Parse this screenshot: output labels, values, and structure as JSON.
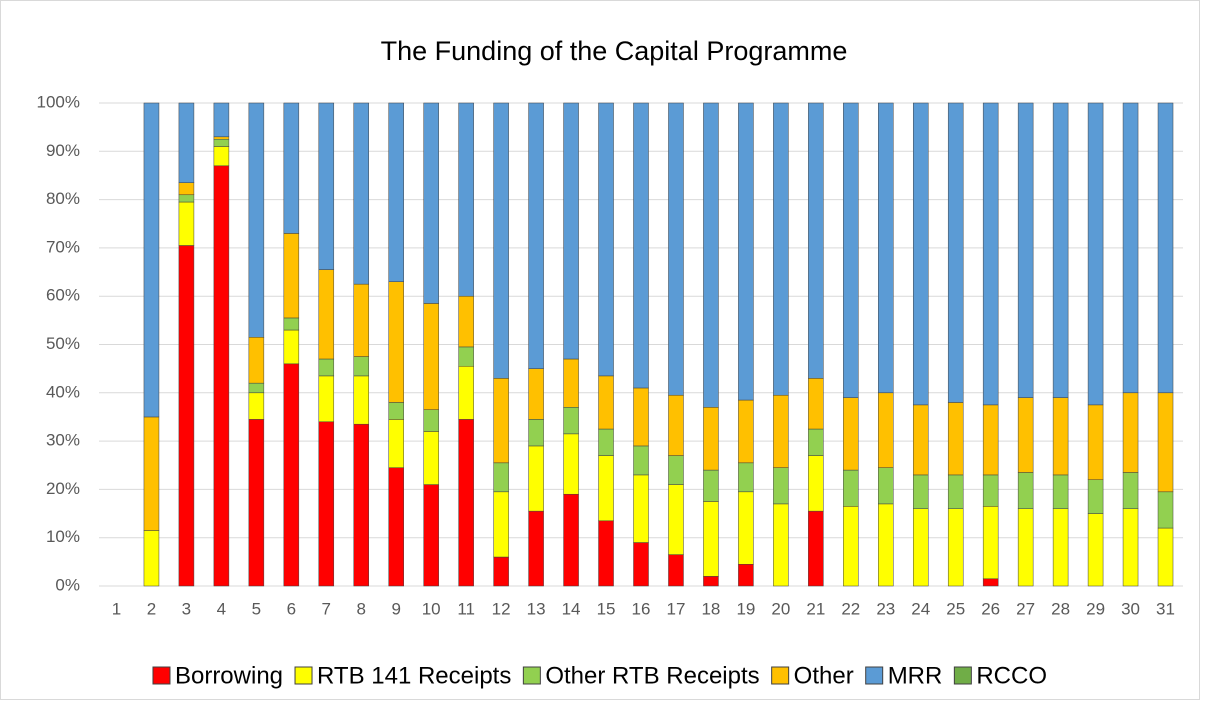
{
  "chart_data": {
    "type": "stacked_bar",
    "title": "The Funding of the Capital Programme",
    "categories": [
      "1",
      "2",
      "3",
      "4",
      "5",
      "6",
      "7",
      "8",
      "9",
      "10",
      "11",
      "12",
      "13",
      "14",
      "15",
      "16",
      "17",
      "18",
      "19",
      "20",
      "21",
      "22",
      "23",
      "24",
      "25",
      "26",
      "27",
      "28",
      "29",
      "30",
      "31"
    ],
    "series": [
      {
        "name": "Borrowing",
        "color": "#ff0000",
        "values": [
          0,
          0,
          70.5,
          87,
          34.5,
          46,
          34,
          33.5,
          24.5,
          21,
          34.5,
          6,
          15.5,
          19,
          13.5,
          9,
          6.5,
          2,
          4.5,
          0,
          15.5,
          0,
          0,
          0,
          0,
          1.5,
          0,
          0,
          0,
          0,
          0
        ]
      },
      {
        "name": "RTB 141 Receipts",
        "color": "#ffff00",
        "values": [
          0,
          11.5,
          9,
          4,
          5.5,
          7,
          9.5,
          10,
          10,
          11,
          11,
          13.5,
          13.5,
          12.5,
          13.5,
          14,
          14.5,
          15.5,
          15,
          17,
          11.5,
          16.5,
          17,
          16,
          16,
          15,
          16,
          16,
          15,
          16,
          12
        ]
      },
      {
        "name": "Other RTB Receipts",
        "color": "#92d050",
        "values": [
          0,
          0,
          1.5,
          1.5,
          2,
          2.5,
          3.5,
          4,
          3.5,
          4.5,
          4,
          6,
          5.5,
          5.5,
          5.5,
          6,
          6,
          6.5,
          6,
          7.5,
          5.5,
          7.5,
          7.5,
          7,
          7,
          6.5,
          7.5,
          7,
          7,
          7.5,
          7.5
        ]
      },
      {
        "name": "Other",
        "color": "#ffc000",
        "values": [
          0,
          23.5,
          2.5,
          0.5,
          9.5,
          17.5,
          18.5,
          15,
          25,
          22,
          10.5,
          17.5,
          10.5,
          10,
          11,
          12,
          12.5,
          13,
          13,
          15,
          10.5,
          15,
          15.5,
          14.5,
          15,
          14.5,
          15.5,
          16,
          15.5,
          16.5,
          20.5
        ]
      },
      {
        "name": "MRR",
        "color": "#5b9bd5",
        "values": [
          0,
          65,
          16.5,
          7,
          48.5,
          27,
          34.5,
          37.5,
          37,
          41.5,
          40,
          57,
          55,
          53,
          56.5,
          59,
          60.5,
          63,
          61.5,
          60.5,
          57,
          61,
          60,
          62.5,
          62,
          62.5,
          61,
          61,
          62.5,
          60,
          60
        ]
      },
      {
        "name": "RCCO",
        "color": "#70ad47",
        "values": [
          0,
          0,
          0,
          0,
          0,
          0,
          0,
          0,
          0,
          0,
          0,
          0,
          0,
          0,
          0,
          0,
          0,
          0,
          0,
          0,
          0,
          0,
          0,
          0,
          0,
          0,
          0,
          0,
          0,
          0,
          0
        ]
      }
    ],
    "ylim": [
      0,
      100
    ],
    "yticks": [
      {
        "value": 0,
        "label": "0%"
      },
      {
        "value": 10,
        "label": "10%"
      },
      {
        "value": 20,
        "label": "20%"
      },
      {
        "value": 30,
        "label": "30%"
      },
      {
        "value": 40,
        "label": "40%"
      },
      {
        "value": 50,
        "label": "50%"
      },
      {
        "value": 60,
        "label": "60%"
      },
      {
        "value": 70,
        "label": "70%"
      },
      {
        "value": 80,
        "label": "80%"
      },
      {
        "value": 90,
        "label": "90%"
      },
      {
        "value": 100,
        "label": "100%"
      }
    ],
    "grid": true,
    "legend": "bottom"
  }
}
